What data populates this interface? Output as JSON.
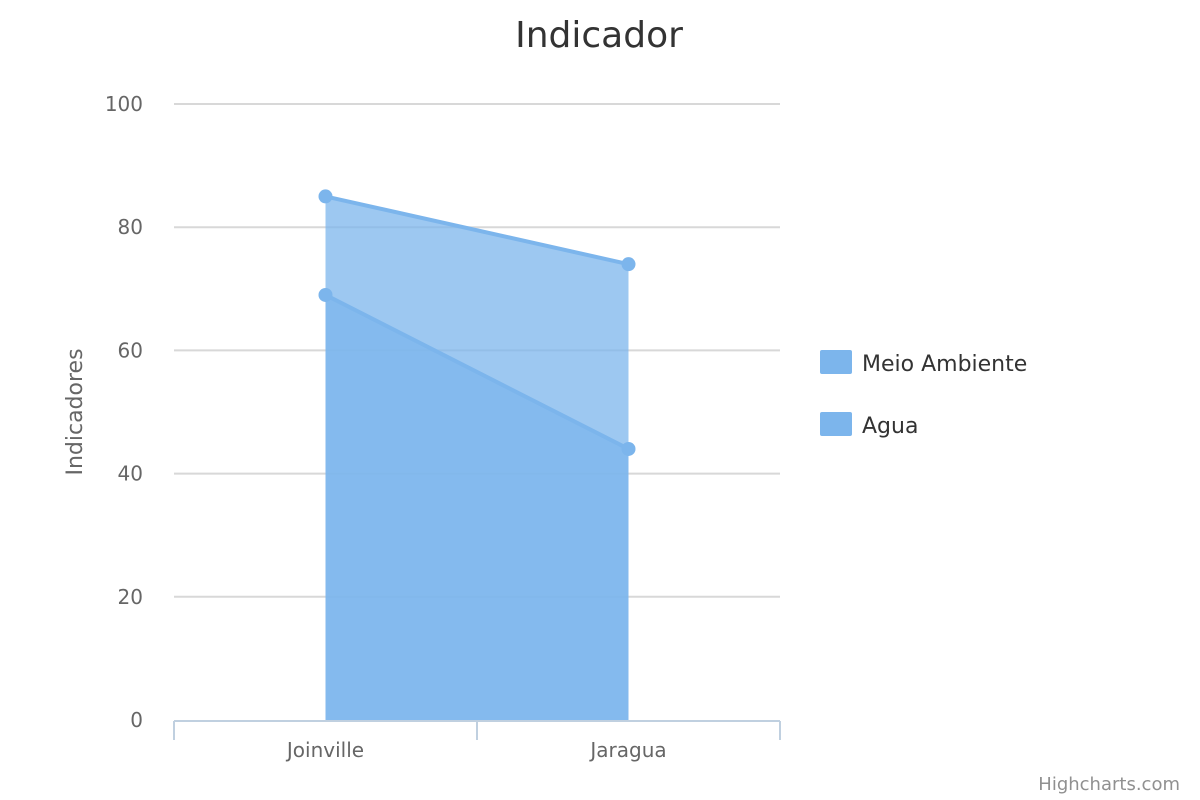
{
  "chart_data": {
    "type": "area",
    "stacking": false,
    "title": "Indicador",
    "categories": [
      "Joinville",
      "Jaragua"
    ],
    "ylabel": "Indicadores",
    "xlabel": "",
    "ylim": [
      0,
      100
    ],
    "yticks": [
      0,
      20,
      40,
      60,
      80,
      100
    ],
    "grid": true,
    "legend_position": "right",
    "series": [
      {
        "name": "Meio Ambiente",
        "values": [
          85,
          74
        ],
        "color": "#7cb5ec"
      },
      {
        "name": "Agua",
        "values": [
          69,
          44
        ],
        "color": "#7cb5ec"
      }
    ]
  },
  "credits": "Highcharts.com"
}
